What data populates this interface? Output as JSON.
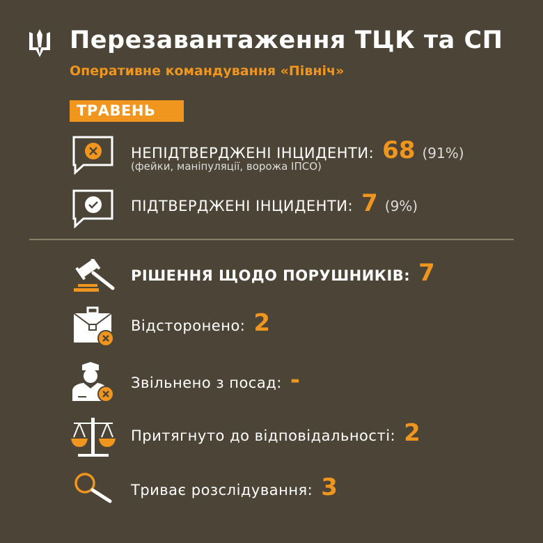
{
  "header": {
    "title": "Перезавантаження ТЦК та СП",
    "subtitle": "Оперативне командування «Північ»",
    "trident_icon": "trident-icon"
  },
  "period": "ТРАВЕНЬ",
  "colors": {
    "background": "#4b4437",
    "accent": "#f0961e",
    "text": "#ffffff"
  },
  "incidents": [
    {
      "label": "НЕПІДТВЕРДЖЕНІ ІНЦИДЕНТИ:",
      "value": "68",
      "percent": "(91%)",
      "note": "(фейки, маніпуляції, ворожа ІПСО)",
      "icon": "chat-x-icon"
    },
    {
      "label": "ПІДТВЕРДЖЕНІ ІНЦИДЕНТИ:",
      "value": "7",
      "percent": "(9%)",
      "icon": "chat-check-icon"
    }
  ],
  "decisions": {
    "label": "РІШЕННЯ ЩОДО ПОРУШНИКІВ:",
    "value": "7",
    "icon": "gavel-icon"
  },
  "items": [
    {
      "label": "Відсторонено:",
      "value": "2",
      "icon": "briefcase-x-icon"
    },
    {
      "label": "Звільнено з посад:",
      "value": "-",
      "icon": "officer-x-icon"
    },
    {
      "label": "Притягнуто до відповідальності:",
      "value": "2",
      "icon": "scales-icon"
    },
    {
      "label": "Триває розслідування:",
      "value": "3",
      "icon": "magnifier-icon"
    }
  ]
}
